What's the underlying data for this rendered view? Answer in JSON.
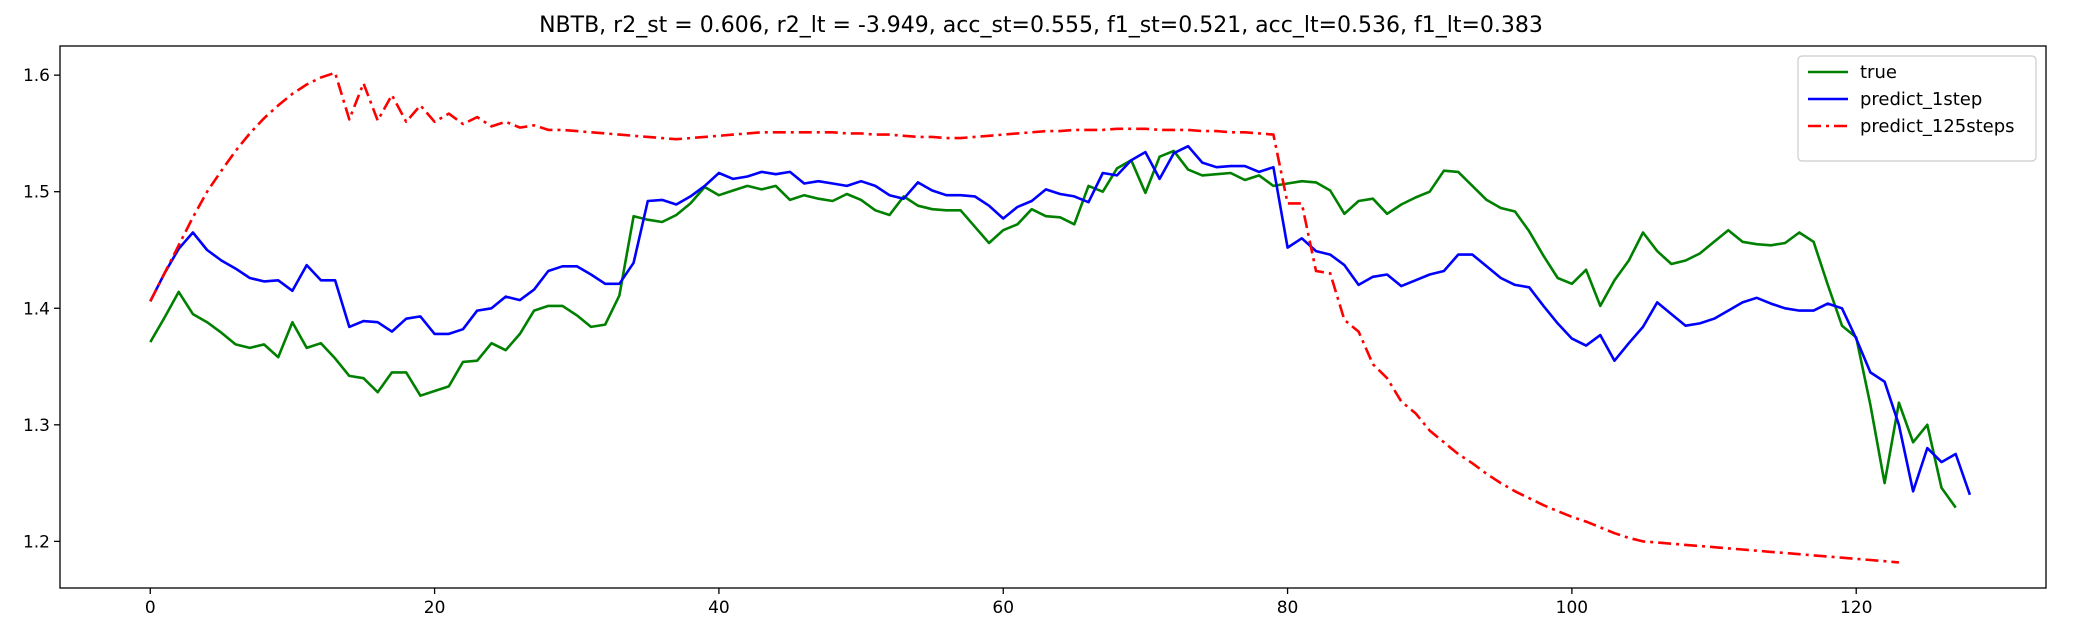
{
  "chart_data": {
    "type": "line",
    "title": "NBTB, r2_st = 0.606, r2_lt = -3.949, acc_st=0.555, f1_st=0.521, acc_lt=0.536, f1_lt=0.383",
    "xlabel": "",
    "ylabel": "",
    "xlim": [
      -6.35,
      133.35
    ],
    "ylim": [
      1.16,
      1.625
    ],
    "xticks": [
      0,
      20,
      40,
      60,
      80,
      100,
      120
    ],
    "yticks": [
      1.2,
      1.3,
      1.4,
      1.5,
      1.6
    ],
    "ytick_labels": [
      "1.2",
      "1.3",
      "1.4",
      "1.5",
      "1.6"
    ],
    "grid": false,
    "legend_position": "top-right",
    "series": [
      {
        "name": "true",
        "color": "#008000",
        "style": "solid",
        "x_start": 0,
        "values": [
          1.371,
          1.392,
          1.414,
          1.395,
          1.388,
          1.379,
          1.369,
          1.366,
          1.369,
          1.358,
          1.388,
          1.366,
          1.37,
          1.357,
          1.342,
          1.34,
          1.328,
          1.345,
          1.345,
          1.325,
          1.329,
          1.333,
          1.354,
          1.355,
          1.37,
          1.364,
          1.378,
          1.398,
          1.402,
          1.402,
          1.394,
          1.384,
          1.386,
          1.411,
          1.479,
          1.476,
          1.474,
          1.48,
          1.49,
          1.504,
          1.497,
          1.501,
          1.505,
          1.502,
          1.505,
          1.493,
          1.497,
          1.494,
          1.492,
          1.498,
          1.493,
          1.484,
          1.48,
          1.496,
          1.488,
          1.485,
          1.484,
          1.484,
          1.47,
          1.456,
          1.467,
          1.472,
          1.485,
          1.479,
          1.478,
          1.472,
          1.505,
          1.5,
          1.52,
          1.527,
          1.499,
          1.53,
          1.535,
          1.519,
          1.514,
          1.515,
          1.516,
          1.51,
          1.514,
          1.505,
          1.507,
          1.509,
          1.508,
          1.501,
          1.481,
          1.492,
          1.494,
          1.481,
          1.489,
          1.495,
          1.5,
          1.518,
          1.517,
          1.505,
          1.493,
          1.486,
          1.483,
          1.466,
          1.445,
          1.426,
          1.421,
          1.433,
          1.402,
          1.424,
          1.441,
          1.465,
          1.449,
          1.438,
          1.441,
          1.447,
          1.457,
          1.467,
          1.457,
          1.455,
          1.454,
          1.456,
          1.465,
          1.457,
          1.42,
          1.385,
          1.375,
          1.317,
          1.25,
          1.319,
          1.285,
          1.3,
          1.246,
          1.229
        ]
      },
      {
        "name": "predict_1step",
        "color": "#0000ff",
        "style": "solid",
        "x_start": 0,
        "values": [
          1.406,
          1.43,
          1.451,
          1.465,
          1.45,
          1.441,
          1.434,
          1.426,
          1.423,
          1.424,
          1.415,
          1.437,
          1.424,
          1.424,
          1.384,
          1.389,
          1.388,
          1.38,
          1.391,
          1.393,
          1.378,
          1.378,
          1.382,
          1.398,
          1.4,
          1.41,
          1.407,
          1.416,
          1.432,
          1.436,
          1.436,
          1.429,
          1.421,
          1.421,
          1.439,
          1.492,
          1.493,
          1.489,
          1.496,
          1.505,
          1.516,
          1.511,
          1.513,
          1.517,
          1.515,
          1.517,
          1.507,
          1.509,
          1.507,
          1.505,
          1.509,
          1.505,
          1.497,
          1.494,
          1.508,
          1.501,
          1.497,
          1.497,
          1.496,
          1.488,
          1.477,
          1.487,
          1.492,
          1.502,
          1.498,
          1.496,
          1.491,
          1.516,
          1.514,
          1.527,
          1.534,
          1.511,
          1.533,
          1.539,
          1.525,
          1.521,
          1.522,
          1.522,
          1.517,
          1.521,
          1.452,
          1.46,
          1.449,
          1.446,
          1.437,
          1.42,
          1.427,
          1.429,
          1.419,
          1.424,
          1.429,
          1.432,
          1.446,
          1.446,
          1.436,
          1.426,
          1.42,
          1.418,
          1.402,
          1.387,
          1.374,
          1.368,
          1.377,
          1.355,
          1.37,
          1.384,
          1.405,
          1.395,
          1.385,
          1.387,
          1.391,
          1.398,
          1.405,
          1.409,
          1.404,
          1.4,
          1.398,
          1.398,
          1.404,
          1.4,
          1.374,
          1.345,
          1.337,
          1.3,
          1.243,
          1.28,
          1.268,
          1.275,
          1.24
        ]
      },
      {
        "name": "predict_125steps",
        "color": "#ff0000",
        "style": "dashdot",
        "x_start": 0,
        "values": [
          1.406,
          1.43,
          1.454,
          1.478,
          1.5,
          1.518,
          1.535,
          1.55,
          1.563,
          1.574,
          1.584,
          1.592,
          1.598,
          1.602,
          1.562,
          1.593,
          1.561,
          1.583,
          1.56,
          1.574,
          1.56,
          1.567,
          1.558,
          1.564,
          1.556,
          1.56,
          1.555,
          1.557,
          1.553,
          1.553,
          1.552,
          1.551,
          1.55,
          1.549,
          1.548,
          1.547,
          1.546,
          1.545,
          1.546,
          1.547,
          1.548,
          1.549,
          1.55,
          1.551,
          1.551,
          1.551,
          1.551,
          1.551,
          1.551,
          1.55,
          1.55,
          1.549,
          1.549,
          1.548,
          1.547,
          1.547,
          1.546,
          1.546,
          1.547,
          1.548,
          1.549,
          1.55,
          1.551,
          1.552,
          1.552,
          1.553,
          1.553,
          1.553,
          1.554,
          1.554,
          1.554,
          1.553,
          1.553,
          1.553,
          1.552,
          1.552,
          1.551,
          1.551,
          1.55,
          1.549,
          1.49,
          1.49,
          1.432,
          1.43,
          1.39,
          1.38,
          1.352,
          1.34,
          1.32,
          1.31,
          1.295,
          1.285,
          1.275,
          1.267,
          1.258,
          1.25,
          1.243,
          1.237,
          1.231,
          1.226,
          1.221,
          1.217,
          1.212,
          1.207,
          1.203,
          1.2,
          1.199,
          1.198,
          1.197,
          1.196,
          1.195,
          1.194,
          1.193,
          1.192,
          1.191,
          1.19,
          1.189,
          1.188,
          1.187,
          1.186,
          1.185,
          1.184,
          1.183,
          1.182
        ]
      }
    ]
  }
}
